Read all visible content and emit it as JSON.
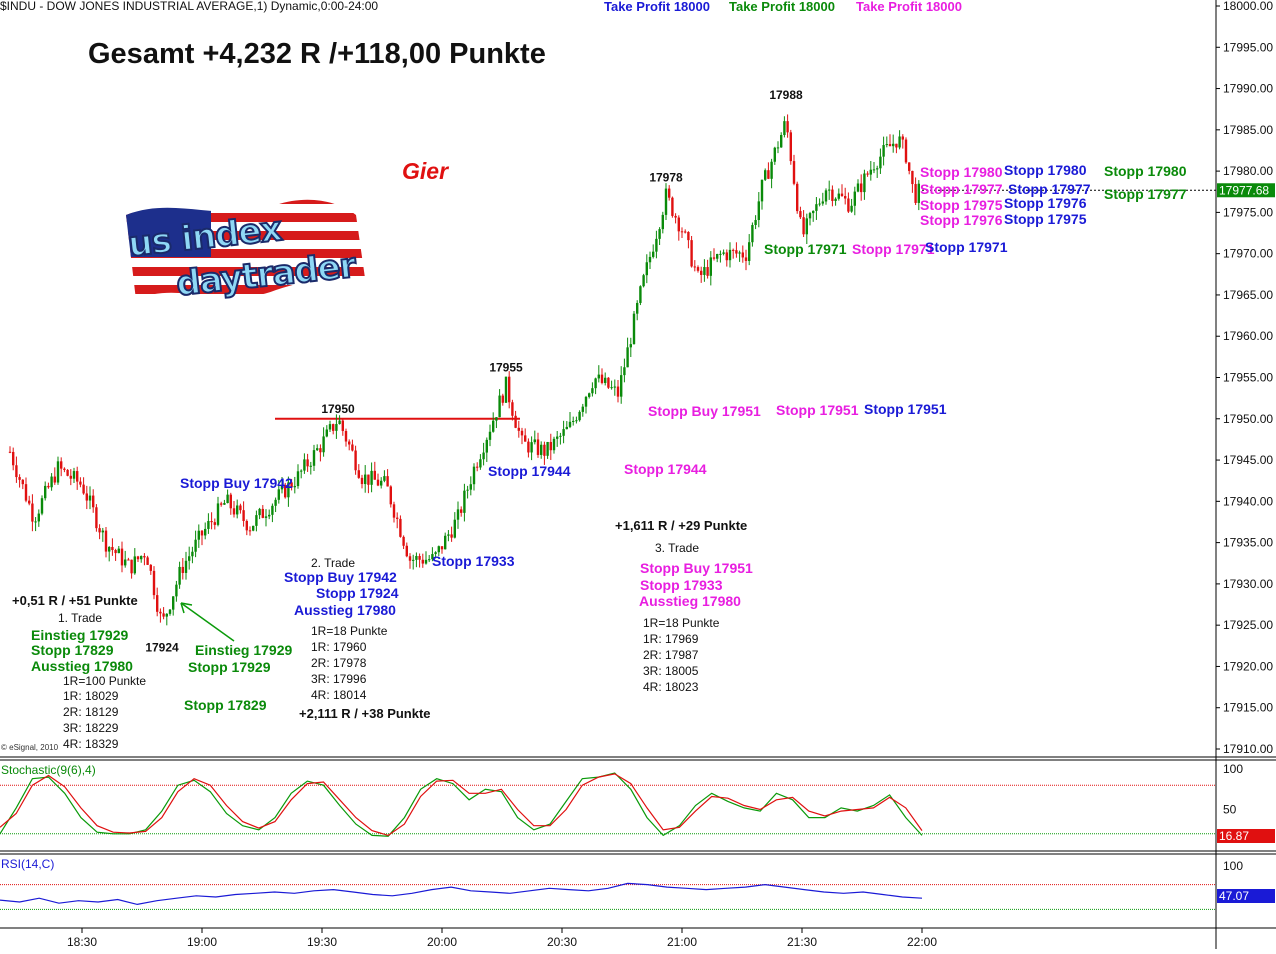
{
  "chart_data": [
    {
      "type": "candlestick",
      "title": "$INDU - DOW JONES INDUSTRIAL AVERAGE,1) Dynamic,0:00-24:00",
      "price_axis": {
        "min": 17910,
        "max": 18000,
        "step": 5,
        "labels": [
          "18000.00",
          "17995.00",
          "17990.00",
          "17985.00",
          "17980.00",
          "17975.00",
          "17970.00",
          "17965.00",
          "17960.00",
          "17955.00",
          "17950.00",
          "17945.00",
          "17940.00",
          "17935.00",
          "17930.00",
          "17925.00",
          "17920.00",
          "17915.00",
          "17910.00"
        ]
      },
      "time_axis": {
        "labels": [
          "18:30",
          "19:00",
          "19:30",
          "20:00",
          "20:30",
          "21:00",
          "21:30",
          "22:00"
        ]
      },
      "last_price": "17977.68",
      "horizontal_line": {
        "value": 17950,
        "color": "#e01010"
      },
      "swing_labels": [
        {
          "text": "17988",
          "time": "21:26",
          "value": 17988
        },
        {
          "text": "17978",
          "time": "20:56",
          "value": 17978
        },
        {
          "text": "17955",
          "time": "20:16",
          "value": 17955
        },
        {
          "text": "17950",
          "time": "19:34",
          "value": 17950
        },
        {
          "text": "17924",
          "time": "18:50",
          "value": 17924
        }
      ],
      "price_path": [
        {
          "t": "18:12",
          "v": 17946
        },
        {
          "t": "18:18",
          "v": 17938
        },
        {
          "t": "18:24",
          "v": 17944
        },
        {
          "t": "18:30",
          "v": 17942
        },
        {
          "t": "18:36",
          "v": 17935
        },
        {
          "t": "18:42",
          "v": 17932
        },
        {
          "t": "18:46",
          "v": 17934
        },
        {
          "t": "18:50",
          "v": 17925
        },
        {
          "t": "18:55",
          "v": 17932
        },
        {
          "t": "19:00",
          "v": 17936
        },
        {
          "t": "19:06",
          "v": 17940
        },
        {
          "t": "19:12",
          "v": 17937
        },
        {
          "t": "19:18",
          "v": 17940
        },
        {
          "t": "19:24",
          "v": 17943
        },
        {
          "t": "19:30",
          "v": 17947
        },
        {
          "t": "19:34",
          "v": 17950
        },
        {
          "t": "19:40",
          "v": 17943
        },
        {
          "t": "19:46",
          "v": 17942
        },
        {
          "t": "19:52",
          "v": 17933
        },
        {
          "t": "19:58",
          "v": 17933
        },
        {
          "t": "20:04",
          "v": 17938
        },
        {
          "t": "20:08",
          "v": 17944
        },
        {
          "t": "20:12",
          "v": 17949
        },
        {
          "t": "20:16",
          "v": 17954
        },
        {
          "t": "20:20",
          "v": 17947
        },
        {
          "t": "20:26",
          "v": 17946
        },
        {
          "t": "20:32",
          "v": 17949
        },
        {
          "t": "20:38",
          "v": 17955
        },
        {
          "t": "20:44",
          "v": 17953
        },
        {
          "t": "20:50",
          "v": 17966
        },
        {
          "t": "20:56",
          "v": 17977
        },
        {
          "t": "21:00",
          "v": 17973
        },
        {
          "t": "21:04",
          "v": 17967
        },
        {
          "t": "21:10",
          "v": 17970
        },
        {
          "t": "21:16",
          "v": 17970
        },
        {
          "t": "21:20",
          "v": 17978
        },
        {
          "t": "21:26",
          "v": 17986
        },
        {
          "t": "21:30",
          "v": 17972
        },
        {
          "t": "21:36",
          "v": 17978
        },
        {
          "t": "21:42",
          "v": 17976
        },
        {
          "t": "21:48",
          "v": 17981
        },
        {
          "t": "21:54",
          "v": 17984
        },
        {
          "t": "21:56",
          "v": 17982
        },
        {
          "t": "21:58",
          "v": 17977
        },
        {
          "t": "22:00",
          "v": 17977.7
        }
      ]
    },
    {
      "type": "line",
      "title": "Stochastic(9(6),4)",
      "y_axis": {
        "min": 0,
        "max": 100,
        "labels": [
          "100",
          "50"
        ]
      },
      "levels": [
        80,
        20
      ],
      "last_value": "16.87",
      "series": [
        {
          "color": "#0a9a0a",
          "values": [
            20,
            52,
            88,
            90,
            70,
            40,
            22,
            20,
            20,
            25,
            48,
            80,
            86,
            72,
            45,
            30,
            25,
            40,
            70,
            85,
            80,
            55,
            32,
            18,
            17,
            40,
            75,
            88,
            82,
            62,
            75,
            72,
            40,
            25,
            32,
            60,
            88,
            90,
            95,
            75,
            40,
            18,
            30,
            55,
            70,
            60,
            52,
            48,
            70,
            62,
            40,
            40,
            52,
            48,
            55,
            68,
            40,
            18
          ]
        },
        {
          "color": "#e01010",
          "values": [
            28,
            45,
            80,
            92,
            78,
            52,
            30,
            22,
            21,
            23,
            40,
            72,
            88,
            80,
            55,
            35,
            27,
            35,
            62,
            82,
            84,
            62,
            40,
            24,
            18,
            32,
            66,
            85,
            86,
            70,
            70,
            75,
            50,
            30,
            30,
            50,
            80,
            90,
            94,
            82,
            52,
            25,
            28,
            48,
            66,
            64,
            55,
            50,
            62,
            65,
            48,
            42,
            48,
            50,
            52,
            65,
            52,
            24
          ]
        }
      ]
    },
    {
      "type": "line",
      "title": "RSI(14,C)",
      "y_axis": {
        "min": 0,
        "max": 100,
        "labels": [
          "100"
        ]
      },
      "levels": [
        70,
        30
      ],
      "last_value": "47.07",
      "series": [
        {
          "color": "#1a1ad6",
          "values": [
            45,
            42,
            48,
            40,
            44,
            42,
            46,
            38,
            44,
            48,
            52,
            50,
            54,
            56,
            58,
            56,
            60,
            62,
            58,
            54,
            52,
            56,
            62,
            66,
            60,
            58,
            56,
            60,
            64,
            62,
            60,
            64,
            72,
            70,
            66,
            64,
            62,
            64,
            66,
            70,
            66,
            62,
            58,
            56,
            58,
            54,
            50,
            48
          ]
        }
      ]
    }
  ],
  "header": {
    "take_profit_blue": "Take Profit 18000",
    "take_profit_green": "Take Profit 18000",
    "take_profit_magenta": "Take Profit 18000"
  },
  "headline": "Gesamt +4,232 R /+118,00 Punkte",
  "emotion_label": "Gier",
  "logo": {
    "line1": "us index",
    "line2": "daytrader"
  },
  "copyright": "© eSignal, 2010",
  "trade1": {
    "result": "+0,51 R / +51 Punkte",
    "title": "1. Trade",
    "entry": "Einstieg 17929",
    "stop": "Stopp 17829",
    "exit": "Ausstieg 17980",
    "r_def": "1R=100 Punkte",
    "r1": "1R: 18029",
    "r2": "2R: 18129",
    "r3": "3R: 18229",
    "r4": "4R: 18329",
    "chart_entry": "Einstieg 17929",
    "chart_stop": "Stopp 17929",
    "chart_stop_initial": "Stopp 17829"
  },
  "trade2": {
    "title": "2. Trade",
    "stop_buy": "Stopp Buy 17942",
    "stop": "Stopp 17924",
    "exit": "Ausstieg 17980",
    "r_def": "1R=18 Punkte",
    "r1": "1R: 17960",
    "r2": "2R: 17978",
    "r3": "3R: 17996",
    "r4": "4R: 18014",
    "result": "+2,111 R / +38 Punkte",
    "chart_stop_buy": "Stopp Buy 17942",
    "chart_stop_33": "Stopp 17933",
    "chart_stop_44": "Stopp 17944"
  },
  "trade3": {
    "result": "+1,611 R / +29 Punkte",
    "title": "3. Trade",
    "stop_buy": "Stopp Buy 17951",
    "stop": "Stopp 17933",
    "exit": "Ausstieg 17980",
    "r_def": "1R=18 Punkte",
    "r1": "1R: 17969",
    "r2": "2R: 17987",
    "r3": "3R: 18005",
    "r4": "4R: 18023",
    "chart_stop_44": "Stopp 17944"
  },
  "stops_row_51": {
    "a": "Stopp Buy 17951",
    "b": "Stopp 17951",
    "c": "Stopp 17951"
  },
  "stops_row_71": {
    "a": "Stopp 17971",
    "b": "Stopp 17971",
    "c": "Stopp 17971"
  },
  "stops_right": {
    "m1": "Stopp 17980",
    "m2": "Stopp 17977",
    "m3": "Stopp 17975",
    "m4": "Stopp 17976",
    "b1": "Stopp 17980",
    "b2": "Stopp 17977",
    "b3": "Stopp 17976",
    "b4": "Stopp 17975",
    "g1": "Stopp 17980",
    "g2": "Stopp 17977"
  },
  "colors": {
    "up": "#0a8a0a",
    "down": "#e01010",
    "blue": "#1a1ad6",
    "green": "#0a8a0a",
    "magenta": "#e81ee0",
    "lastprice_bg": "#0a8a0a",
    "stoch_bg": "#e01010",
    "rsi_bg": "#1a1ad6"
  }
}
